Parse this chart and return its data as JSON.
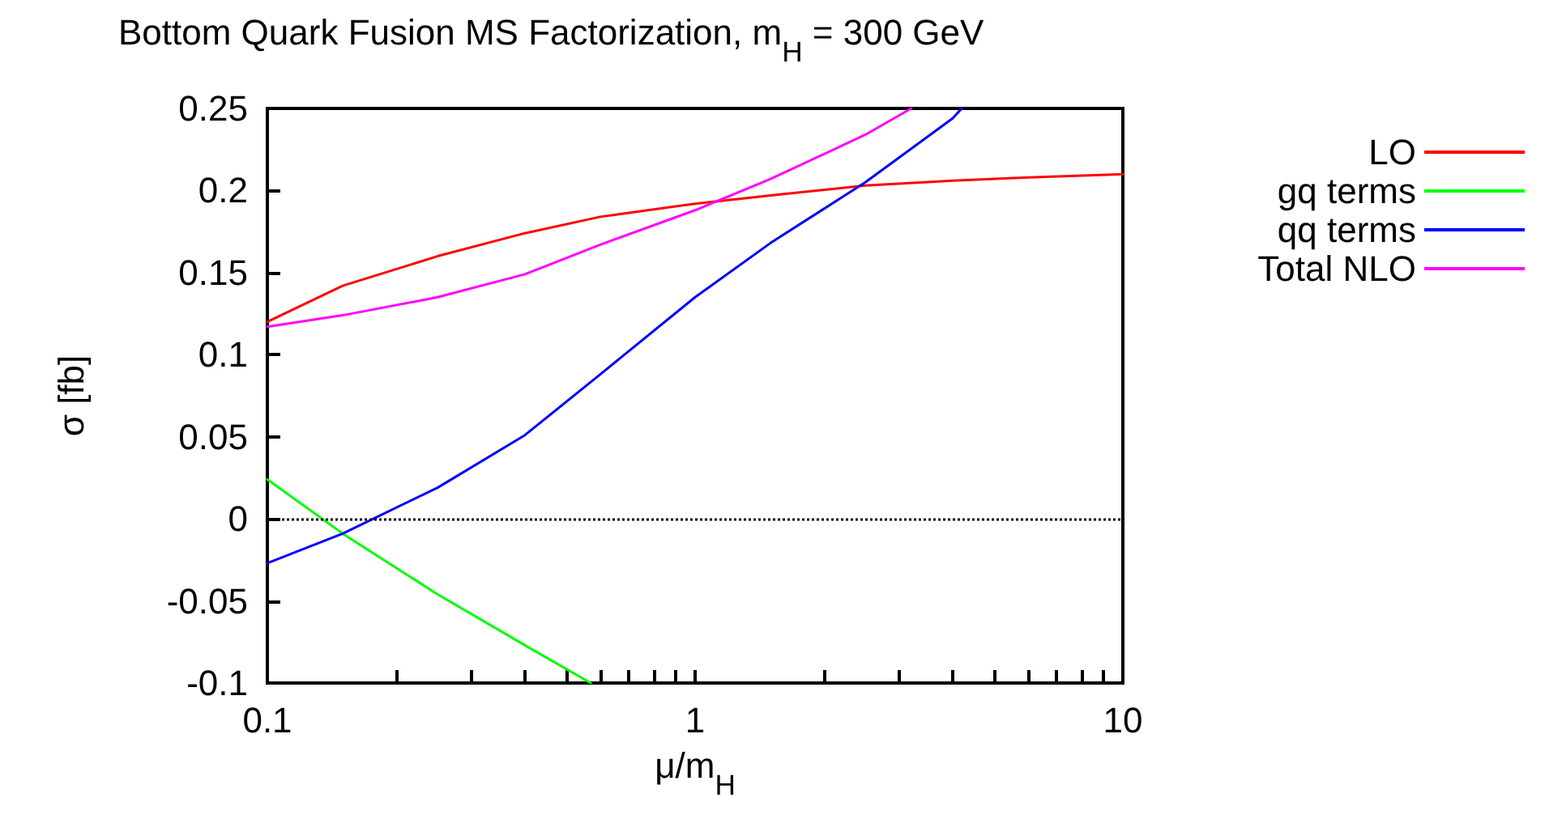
{
  "chart_data": {
    "type": "line",
    "title": "Bottom Quark Fusion MS Factorization, m$_{H}$ = 300 GeV",
    "xlabel": "μ/m$_{H}$",
    "ylabel": "σ [fb]",
    "log": "x",
    "xlim": [
      0.1,
      10
    ],
    "xticks": [
      0.1,
      {
        "value": 0.2,
        "label": null
      },
      {
        "value": 0.3,
        "label": null
      },
      {
        "value": 0.4,
        "label": null
      },
      {
        "value": 0.5,
        "label": null
      },
      {
        "value": 0.6,
        "label": null
      },
      {
        "value": 0.7,
        "label": null
      },
      {
        "value": 0.8,
        "label": null
      },
      {
        "value": 0.9,
        "label": null
      },
      1,
      {
        "value": 2,
        "label": null
      },
      {
        "value": 3,
        "label": null
      },
      {
        "value": 4,
        "label": null
      },
      {
        "value": 5,
        "label": null
      },
      {
        "value": 6,
        "label": null
      },
      {
        "value": 7,
        "label": null
      },
      {
        "value": 8,
        "label": null
      },
      {
        "value": 9,
        "label": null
      },
      10
    ],
    "ylim": [
      -0.1,
      0.25
    ],
    "yticks": [
      -0.1,
      -0.05,
      0,
      0.05,
      0.1,
      0.15,
      0.2,
      0.25
    ],
    "grid": false,
    "legend": "right",
    "marker": "none",
    "line_style": "solid",
    "series": [
      {
        "name": "LO",
        "color": "#ff0000",
        "x": [
          0.1,
          0.15,
          0.25,
          0.4,
          0.6,
          1,
          1.5,
          2.5,
          4,
          6,
          10
        ],
        "values": [
          0.12,
          0.142,
          0.16,
          0.174,
          0.184,
          0.192,
          0.197,
          0.203,
          0.206,
          0.208,
          0.21
        ]
      },
      {
        "name": "gq terms",
        "color": "#00ff00",
        "x": [
          0.1,
          0.15,
          0.25,
          0.4,
          0.57
        ],
        "values": [
          0.024,
          -0.009,
          -0.046,
          -0.077,
          -0.1
        ]
      },
      {
        "name": "qq terms",
        "color": "#0000ff",
        "x": [
          0.1,
          0.15,
          0.25,
          0.4,
          0.6,
          1,
          1.5,
          2.5,
          4,
          4.2
        ],
        "values": [
          -0.027,
          -0.009,
          0.019,
          0.051,
          0.088,
          0.135,
          0.168,
          0.205,
          0.244,
          0.25
        ]
      },
      {
        "name": "Total NLO",
        "color": "#ff00ff",
        "x": [
          0.1,
          0.15,
          0.25,
          0.4,
          0.6,
          1,
          1.5,
          2.5,
          3.2
        ],
        "values": [
          0.117,
          0.124,
          0.135,
          0.149,
          0.167,
          0.188,
          0.207,
          0.234,
          0.25
        ]
      }
    ],
    "ref_lines": [
      {
        "axis": "y",
        "value": 0,
        "label": null,
        "color": "#000000",
        "line_style": "dotted"
      }
    ]
  }
}
